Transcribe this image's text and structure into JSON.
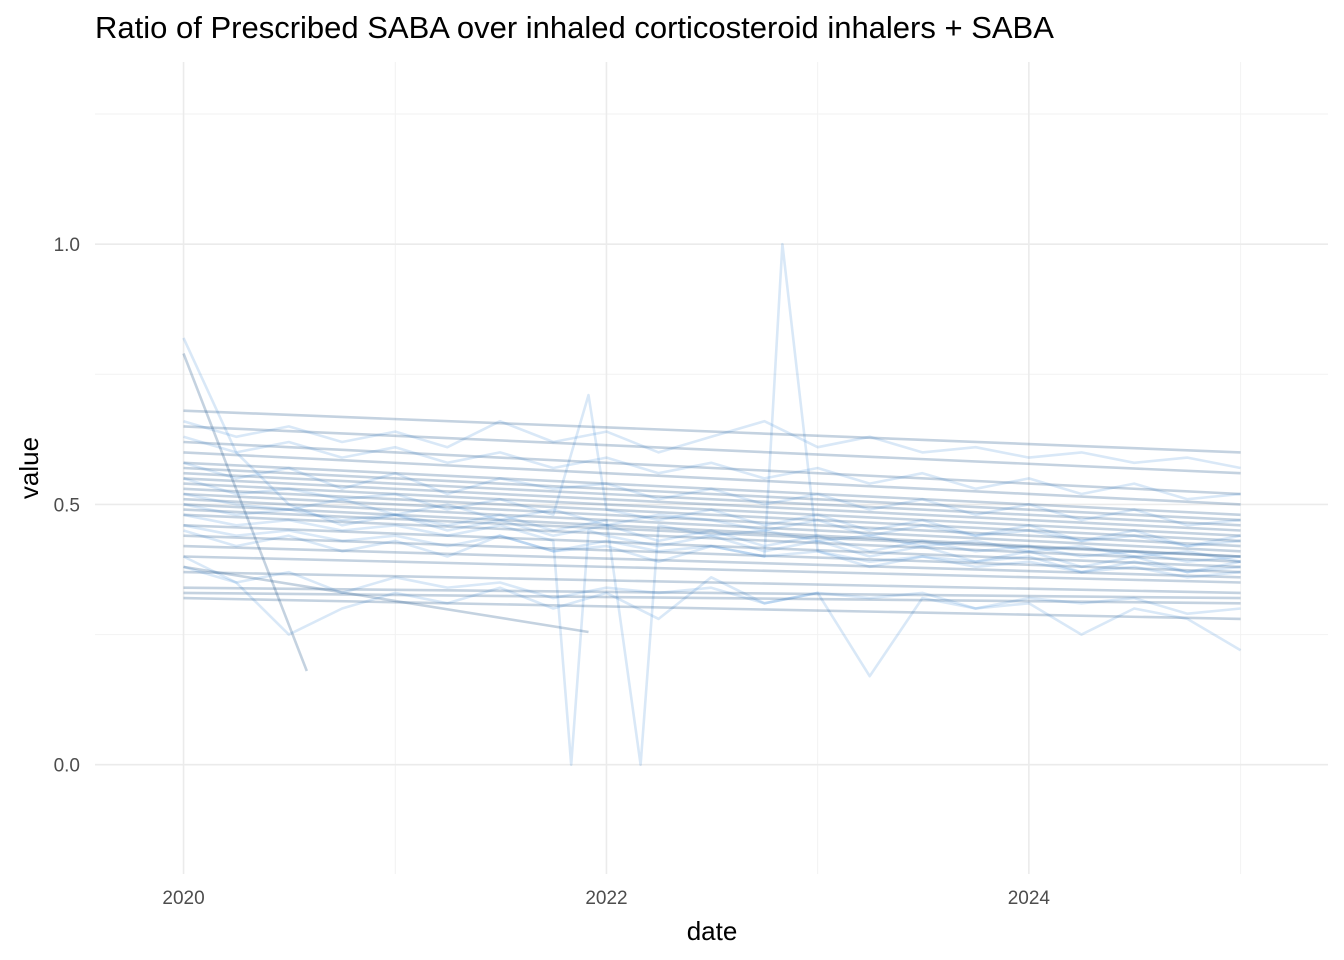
{
  "chart_data": {
    "type": "line",
    "title": "Ratio of Prescribed SABA over inhaled corticosteroid inhalers + SABA",
    "xlabel": "date",
    "ylabel": "value",
    "x_ticks": [
      "2020",
      "2022",
      "2024"
    ],
    "y_ticks": [
      "0.0",
      "0.5",
      "1.0"
    ],
    "xlim": [
      "2019-08-01",
      "2025-06-01"
    ],
    "ylim": [
      -0.21,
      1.35
    ],
    "grid": true,
    "legend": "none",
    "line_color": "#2f7fd0",
    "smooth_line_color": "#2b5f8f",
    "noisy_series": [
      {
        "x": [
          "2020-01-01",
          "2020-04-01",
          "2020-07-01",
          "2020-10-01",
          "2021-01-01",
          "2021-04-01",
          "2021-07-01",
          "2021-10-01",
          "2022-01-01",
          "2022-04-01",
          "2022-07-01",
          "2022-10-01",
          "2023-01-01",
          "2023-04-01",
          "2023-07-01",
          "2023-10-01",
          "2024-01-01",
          "2024-04-01",
          "2024-07-01",
          "2024-10-01",
          "2025-01-01"
        ],
        "y": [
          0.58,
          0.55,
          0.57,
          0.53,
          0.56,
          0.52,
          0.55,
          0.53,
          0.54,
          0.51,
          0.53,
          0.5,
          0.52,
          0.49,
          0.51,
          0.48,
          0.5,
          0.47,
          0.49,
          0.46,
          0.47
        ]
      },
      {
        "x": [
          "2020-01-01",
          "2020-04-01",
          "2020-07-01",
          "2020-10-01",
          "2021-01-01",
          "2021-04-01",
          "2021-07-01",
          "2021-10-01",
          "2022-01-01",
          "2022-04-01",
          "2022-07-01",
          "2022-10-01",
          "2023-01-01",
          "2023-04-01",
          "2023-07-01",
          "2023-10-01",
          "2024-01-01",
          "2024-04-01",
          "2024-07-01",
          "2024-10-01",
          "2025-01-01"
        ],
        "y": [
          0.45,
          0.42,
          0.44,
          0.41,
          0.43,
          0.4,
          0.44,
          0.41,
          0.42,
          0.39,
          0.42,
          0.4,
          0.41,
          0.38,
          0.4,
          0.39,
          0.4,
          0.37,
          0.39,
          0.37,
          0.38
        ]
      },
      {
        "x": [
          "2020-01-01",
          "2020-04-01",
          "2020-07-01",
          "2020-10-01",
          "2021-01-01",
          "2021-04-01",
          "2021-07-01",
          "2021-10-01",
          "2022-01-01",
          "2022-04-01",
          "2022-07-01",
          "2022-10-01",
          "2023-01-01",
          "2023-04-01",
          "2023-07-01",
          "2023-10-01",
          "2024-01-01",
          "2024-04-01",
          "2024-07-01",
          "2024-10-01",
          "2025-01-01"
        ],
        "y": [
          0.52,
          0.5,
          0.49,
          0.51,
          0.48,
          0.5,
          0.47,
          0.49,
          0.46,
          0.48,
          0.47,
          0.45,
          0.47,
          0.44,
          0.46,
          0.44,
          0.45,
          0.43,
          0.44,
          0.42,
          0.43
        ]
      },
      {
        "x": [
          "2020-01-01",
          "2020-04-01",
          "2020-07-01",
          "2020-10-01",
          "2021-01-01",
          "2021-04-01",
          "2021-07-01",
          "2021-10-01",
          "2022-01-01",
          "2022-04-01",
          "2022-07-01",
          "2022-10-01",
          "2023-01-01",
          "2023-04-01",
          "2023-07-01",
          "2023-10-01",
          "2024-01-01",
          "2024-04-01",
          "2024-07-01",
          "2024-10-01",
          "2025-01-01"
        ],
        "y": [
          0.63,
          0.6,
          0.62,
          0.59,
          0.61,
          0.58,
          0.6,
          0.57,
          0.59,
          0.56,
          0.58,
          0.55,
          0.57,
          0.54,
          0.56,
          0.53,
          0.55,
          0.52,
          0.54,
          0.51,
          0.52
        ]
      },
      {
        "x": [
          "2020-01-01",
          "2020-04-01",
          "2020-07-01",
          "2020-10-01",
          "2021-01-01",
          "2021-04-01",
          "2021-07-01",
          "2021-10-01",
          "2022-01-01",
          "2022-04-01",
          "2022-07-01",
          "2022-10-01",
          "2023-01-01",
          "2023-04-01",
          "2023-07-01",
          "2023-10-01",
          "2024-01-01",
          "2024-04-01",
          "2024-07-01",
          "2024-10-01",
          "2025-01-01"
        ],
        "y": [
          0.38,
          0.35,
          0.37,
          0.33,
          0.36,
          0.34,
          0.35,
          0.32,
          0.34,
          0.33,
          0.34,
          0.31,
          0.33,
          0.32,
          0.33,
          0.3,
          0.32,
          0.31,
          0.32,
          0.29,
          0.3
        ]
      },
      {
        "x": [
          "2020-01-01",
          "2020-04-01",
          "2020-07-01",
          "2020-10-01",
          "2021-01-01",
          "2021-04-01",
          "2021-07-01",
          "2021-10-01",
          "2022-01-01",
          "2022-04-01",
          "2022-07-01",
          "2022-10-01",
          "2023-01-01",
          "2023-04-01",
          "2023-07-01",
          "2023-10-01",
          "2024-01-01",
          "2024-04-01",
          "2024-07-01",
          "2024-10-01",
          "2025-01-01"
        ],
        "y": [
          0.82,
          0.6,
          0.5,
          0.46,
          0.48,
          0.45,
          0.47,
          0.44,
          0.46,
          0.43,
          0.45,
          0.42,
          0.44,
          0.41,
          0.43,
          0.41,
          0.42,
          0.4,
          0.41,
          0.39,
          0.4
        ]
      },
      {
        "x": [
          "2020-01-01",
          "2020-04-01",
          "2020-07-01",
          "2020-10-01",
          "2021-01-01",
          "2021-04-01",
          "2021-07-01",
          "2021-10-01",
          "2021-12-01",
          "2022-01-01",
          "2022-04-01",
          "2022-07-01",
          "2022-10-01",
          "2023-01-01",
          "2023-04-01",
          "2023-07-01",
          "2023-10-01",
          "2024-01-01",
          "2024-04-01",
          "2024-07-01",
          "2024-10-01",
          "2025-01-01"
        ],
        "y": [
          0.55,
          0.52,
          0.53,
          0.51,
          0.52,
          0.49,
          0.51,
          0.48,
          0.71,
          0.49,
          0.47,
          0.49,
          0.46,
          0.48,
          0.45,
          0.47,
          0.44,
          0.46,
          0.43,
          0.45,
          0.42,
          0.44
        ]
      },
      {
        "x": [
          "2020-01-01",
          "2020-04-01",
          "2020-07-01",
          "2020-10-01",
          "2021-01-01",
          "2021-04-01",
          "2021-07-01",
          "2021-10-01",
          "2021-11-01",
          "2021-12-01",
          "2022-01-01",
          "2022-04-01",
          "2022-07-01",
          "2022-10-01",
          "2023-01-01",
          "2023-04-01",
          "2023-07-01",
          "2023-10-01",
          "2024-01-01",
          "2024-04-01",
          "2024-07-01",
          "2024-10-01",
          "2025-01-01"
        ],
        "y": [
          0.48,
          0.46,
          0.47,
          0.45,
          0.46,
          0.44,
          0.46,
          0.43,
          0.0,
          0.45,
          0.44,
          0.42,
          0.44,
          0.41,
          0.43,
          0.4,
          0.42,
          0.39,
          0.41,
          0.38,
          0.4,
          0.37,
          0.39
        ]
      },
      {
        "x": [
          "2020-01-01",
          "2020-04-01",
          "2020-07-01",
          "2020-10-01",
          "2021-01-01",
          "2021-04-01",
          "2021-07-01",
          "2021-10-01",
          "2022-01-01",
          "2022-03-01",
          "2022-04-01",
          "2022-07-01",
          "2022-10-01",
          "2023-01-01",
          "2023-04-01",
          "2023-07-01",
          "2023-10-01",
          "2024-01-01",
          "2024-04-01",
          "2024-07-01",
          "2024-10-01",
          "2025-01-01"
        ],
        "y": [
          0.5,
          0.48,
          0.49,
          0.47,
          0.48,
          0.46,
          0.48,
          0.45,
          0.47,
          0.0,
          0.46,
          0.44,
          0.45,
          0.43,
          0.44,
          0.42,
          0.43,
          0.41,
          0.42,
          0.4,
          0.41,
          0.39
        ]
      },
      {
        "x": [
          "2020-01-01",
          "2020-04-01",
          "2020-07-01",
          "2020-10-01",
          "2021-01-01",
          "2021-04-01",
          "2021-07-01",
          "2021-10-01",
          "2022-01-01",
          "2022-04-01",
          "2022-07-01",
          "2022-10-01",
          "2022-11-01",
          "2023-01-01",
          "2023-04-01",
          "2023-07-01",
          "2023-10-01",
          "2024-01-01",
          "2024-04-01",
          "2024-07-01",
          "2024-10-01",
          "2025-01-01"
        ],
        "y": [
          0.46,
          0.44,
          0.45,
          0.43,
          0.44,
          0.42,
          0.44,
          0.41,
          0.43,
          0.41,
          0.42,
          0.4,
          1.0,
          0.41,
          0.39,
          0.4,
          0.38,
          0.39,
          0.37,
          0.38,
          0.36,
          0.37
        ]
      },
      {
        "x": [
          "2020-01-01",
          "2020-04-01",
          "2020-07-01",
          "2020-10-01",
          "2021-01-01",
          "2021-04-01",
          "2021-07-01",
          "2021-10-01",
          "2022-01-01",
          "2022-04-01",
          "2022-07-01",
          "2022-10-01",
          "2023-01-01",
          "2023-04-01",
          "2023-07-01",
          "2023-10-01",
          "2024-01-01",
          "2024-04-01",
          "2024-07-01",
          "2024-10-01",
          "2025-01-01"
        ],
        "y": [
          0.4,
          0.35,
          0.25,
          0.3,
          0.33,
          0.31,
          0.34,
          0.3,
          0.33,
          0.28,
          0.36,
          0.31,
          0.33,
          0.17,
          0.32,
          0.3,
          0.31,
          0.25,
          0.3,
          0.28,
          0.22
        ]
      },
      {
        "x": [
          "2020-01-01",
          "2020-04-01",
          "2020-07-01",
          "2020-10-01",
          "2021-01-01",
          "2021-04-01",
          "2021-07-01",
          "2021-10-01",
          "2022-01-01",
          "2022-04-01",
          "2022-07-01",
          "2022-10-01",
          "2023-01-01",
          "2023-04-01",
          "2023-07-01",
          "2023-10-01",
          "2024-01-01",
          "2024-04-01",
          "2024-07-01",
          "2024-10-01",
          "2025-01-01"
        ],
        "y": [
          0.66,
          0.63,
          0.65,
          0.62,
          0.64,
          0.61,
          0.66,
          0.62,
          0.64,
          0.6,
          0.63,
          0.66,
          0.61,
          0.63,
          0.6,
          0.61,
          0.59,
          0.6,
          0.58,
          0.59,
          0.57
        ]
      }
    ],
    "smooth_series": [
      {
        "x": [
          "2020-01-01",
          "2025-01-01"
        ],
        "y": [
          0.68,
          0.6
        ]
      },
      {
        "x": [
          "2020-01-01",
          "2025-01-01"
        ],
        "y": [
          0.65,
          0.56
        ]
      },
      {
        "x": [
          "2020-01-01",
          "2025-01-01"
        ],
        "y": [
          0.62,
          0.52
        ]
      },
      {
        "x": [
          "2020-01-01",
          "2025-01-01"
        ],
        "y": [
          0.6,
          0.5
        ]
      },
      {
        "x": [
          "2020-01-01",
          "2025-01-01"
        ],
        "y": [
          0.58,
          0.48
        ]
      },
      {
        "x": [
          "2020-01-01",
          "2025-01-01"
        ],
        "y": [
          0.57,
          0.47
        ]
      },
      {
        "x": [
          "2020-01-01",
          "2025-01-01"
        ],
        "y": [
          0.56,
          0.46
        ]
      },
      {
        "x": [
          "2020-01-01",
          "2025-01-01"
        ],
        "y": [
          0.55,
          0.45
        ]
      },
      {
        "x": [
          "2020-01-01",
          "2025-01-01"
        ],
        "y": [
          0.54,
          0.44
        ]
      },
      {
        "x": [
          "2020-01-01",
          "2025-01-01"
        ],
        "y": [
          0.53,
          0.43
        ]
      },
      {
        "x": [
          "2020-01-01",
          "2025-01-01"
        ],
        "y": [
          0.52,
          0.42
        ]
      },
      {
        "x": [
          "2020-01-01",
          "2025-01-01"
        ],
        "y": [
          0.51,
          0.41
        ]
      },
      {
        "x": [
          "2020-01-01",
          "2025-01-01"
        ],
        "y": [
          0.5,
          0.4
        ]
      },
      {
        "x": [
          "2020-01-01",
          "2025-01-01"
        ],
        "y": [
          0.49,
          0.4
        ]
      },
      {
        "x": [
          "2020-01-01",
          "2025-01-01"
        ],
        "y": [
          0.48,
          0.39
        ]
      },
      {
        "x": [
          "2020-01-01",
          "2025-01-01"
        ],
        "y": [
          0.46,
          0.38
        ]
      },
      {
        "x": [
          "2020-01-01",
          "2025-01-01"
        ],
        "y": [
          0.44,
          0.37
        ]
      },
      {
        "x": [
          "2020-01-01",
          "2025-01-01"
        ],
        "y": [
          0.42,
          0.36
        ]
      },
      {
        "x": [
          "2020-01-01",
          "2025-01-01"
        ],
        "y": [
          0.4,
          0.35
        ]
      },
      {
        "x": [
          "2020-01-01",
          "2025-01-01"
        ],
        "y": [
          0.37,
          0.33
        ]
      },
      {
        "x": [
          "2020-01-01",
          "2025-01-01"
        ],
        "y": [
          0.34,
          0.32
        ]
      },
      {
        "x": [
          "2020-01-01",
          "2025-01-01"
        ],
        "y": [
          0.33,
          0.31
        ]
      },
      {
        "x": [
          "2020-01-01",
          "2025-01-01"
        ],
        "y": [
          0.32,
          0.28
        ]
      },
      {
        "x": [
          "2020-01-01",
          "2021-12-01"
        ],
        "y": [
          0.38,
          0.255
        ]
      },
      {
        "x": [
          "2020-01-01",
          "2020-08-01"
        ],
        "y": [
          0.79,
          0.18
        ]
      }
    ]
  }
}
